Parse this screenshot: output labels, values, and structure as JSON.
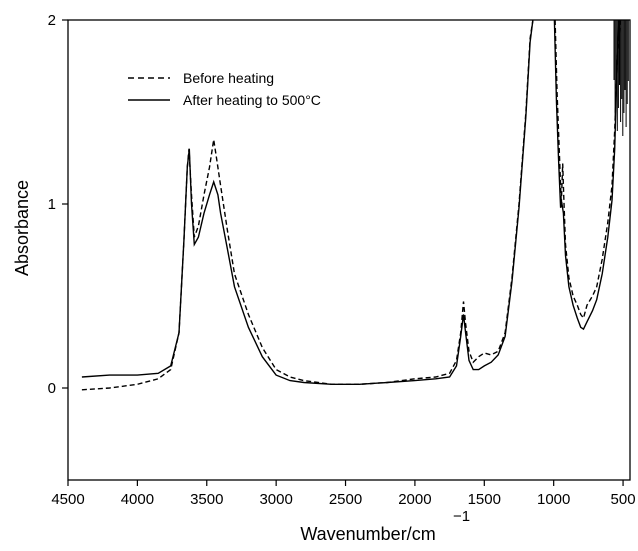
{
  "chart_data": {
    "type": "line",
    "xlabel": "Wavenumber/cm",
    "xlabel_superscript": "−1",
    "ylabel": "Absorbance",
    "x_ticks": [
      4500,
      4000,
      3500,
      3000,
      2500,
      2000,
      1500,
      1000,
      500
    ],
    "x_tick_labels": [
      "4500",
      "4000",
      "3500",
      "3000",
      "2500",
      "2000",
      "1500",
      "1000",
      "500"
    ],
    "y_ticks": [
      0,
      1,
      2
    ],
    "y_tick_labels": [
      "0",
      "1",
      "2"
    ],
    "xlim": [
      4500,
      450
    ],
    "ylim": [
      -0.5,
      2
    ],
    "x_reversed": true,
    "grid": false,
    "legend_position": "top-left",
    "series": [
      {
        "name": "Before heating",
        "style": "dashed",
        "color": "#000000",
        "points": [
          [
            4400,
            -0.01
          ],
          [
            4200,
            0.0
          ],
          [
            4000,
            0.02
          ],
          [
            3850,
            0.05
          ],
          [
            3760,
            0.1
          ],
          [
            3700,
            0.3
          ],
          [
            3665,
            0.8
          ],
          [
            3640,
            1.2
          ],
          [
            3628,
            1.3
          ],
          [
            3610,
            1.05
          ],
          [
            3590,
            0.82
          ],
          [
            3560,
            0.88
          ],
          [
            3520,
            1.05
          ],
          [
            3480,
            1.2
          ],
          [
            3450,
            1.35
          ],
          [
            3430,
            1.25
          ],
          [
            3400,
            1.1
          ],
          [
            3350,
            0.85
          ],
          [
            3300,
            0.62
          ],
          [
            3200,
            0.4
          ],
          [
            3100,
            0.22
          ],
          [
            3000,
            0.1
          ],
          [
            2900,
            0.06
          ],
          [
            2800,
            0.04
          ],
          [
            2600,
            0.02
          ],
          [
            2400,
            0.02
          ],
          [
            2200,
            0.03
          ],
          [
            2000,
            0.05
          ],
          [
            1850,
            0.06
          ],
          [
            1750,
            0.08
          ],
          [
            1700,
            0.15
          ],
          [
            1670,
            0.3
          ],
          [
            1650,
            0.47
          ],
          [
            1635,
            0.35
          ],
          [
            1610,
            0.2
          ],
          [
            1580,
            0.14
          ],
          [
            1540,
            0.17
          ],
          [
            1500,
            0.19
          ],
          [
            1450,
            0.18
          ],
          [
            1400,
            0.2
          ],
          [
            1350,
            0.3
          ],
          [
            1300,
            0.6
          ],
          [
            1250,
            1.0
          ],
          [
            1200,
            1.5
          ],
          [
            1170,
            1.9
          ],
          [
            1150,
            2.0
          ]
        ],
        "points_right": [
          [
            990,
            2.0
          ],
          [
            975,
            1.6
          ],
          [
            960,
            1.3
          ],
          [
            945,
            1.0
          ],
          [
            935,
            1.22
          ],
          [
            928,
            1.05
          ],
          [
            915,
            0.78
          ],
          [
            890,
            0.6
          ],
          [
            860,
            0.5
          ],
          [
            830,
            0.45
          ],
          [
            805,
            0.4
          ],
          [
            785,
            0.38
          ],
          [
            760,
            0.45
          ],
          [
            720,
            0.5
          ],
          [
            690,
            0.55
          ],
          [
            650,
            0.7
          ],
          [
            610,
            0.9
          ],
          [
            580,
            1.1
          ],
          [
            560,
            1.4
          ],
          [
            540,
            1.8
          ],
          [
            520,
            2.0
          ]
        ]
      },
      {
        "name": "After heating to 500°C",
        "style": "solid",
        "color": "#000000",
        "points": [
          [
            4400,
            0.06
          ],
          [
            4200,
            0.07
          ],
          [
            4000,
            0.07
          ],
          [
            3850,
            0.08
          ],
          [
            3760,
            0.12
          ],
          [
            3700,
            0.3
          ],
          [
            3665,
            0.8
          ],
          [
            3640,
            1.2
          ],
          [
            3626,
            1.3
          ],
          [
            3610,
            1.0
          ],
          [
            3590,
            0.78
          ],
          [
            3560,
            0.82
          ],
          [
            3520,
            0.95
          ],
          [
            3480,
            1.05
          ],
          [
            3450,
            1.12
          ],
          [
            3420,
            1.05
          ],
          [
            3400,
            0.95
          ],
          [
            3350,
            0.75
          ],
          [
            3300,
            0.55
          ],
          [
            3200,
            0.33
          ],
          [
            3100,
            0.17
          ],
          [
            3000,
            0.07
          ],
          [
            2900,
            0.04
          ],
          [
            2800,
            0.03
          ],
          [
            2600,
            0.02
          ],
          [
            2400,
            0.02
          ],
          [
            2200,
            0.03
          ],
          [
            2000,
            0.04
          ],
          [
            1850,
            0.05
          ],
          [
            1750,
            0.06
          ],
          [
            1700,
            0.12
          ],
          [
            1670,
            0.28
          ],
          [
            1650,
            0.4
          ],
          [
            1635,
            0.3
          ],
          [
            1610,
            0.15
          ],
          [
            1580,
            0.1
          ],
          [
            1540,
            0.1
          ],
          [
            1500,
            0.12
          ],
          [
            1450,
            0.14
          ],
          [
            1400,
            0.18
          ],
          [
            1350,
            0.28
          ],
          [
            1300,
            0.58
          ],
          [
            1250,
            0.98
          ],
          [
            1200,
            1.48
          ],
          [
            1170,
            1.88
          ],
          [
            1150,
            2.0
          ]
        ],
        "points_right": [
          [
            995,
            2.0
          ],
          [
            980,
            1.55
          ],
          [
            965,
            1.25
          ],
          [
            950,
            0.98
          ],
          [
            940,
            1.0
          ],
          [
            930,
            0.95
          ],
          [
            915,
            0.72
          ],
          [
            890,
            0.55
          ],
          [
            860,
            0.45
          ],
          [
            830,
            0.38
          ],
          [
            805,
            0.33
          ],
          [
            785,
            0.32
          ],
          [
            760,
            0.36
          ],
          [
            720,
            0.42
          ],
          [
            690,
            0.48
          ],
          [
            650,
            0.62
          ],
          [
            610,
            0.82
          ],
          [
            580,
            1.02
          ],
          [
            560,
            1.3
          ],
          [
            545,
            1.7
          ],
          [
            530,
            2.0
          ]
        ]
      }
    ],
    "legend": [
      {
        "label": "Before heating",
        "style": "dashed"
      },
      {
        "label": "After heating to 500°C",
        "style": "solid"
      }
    ]
  }
}
